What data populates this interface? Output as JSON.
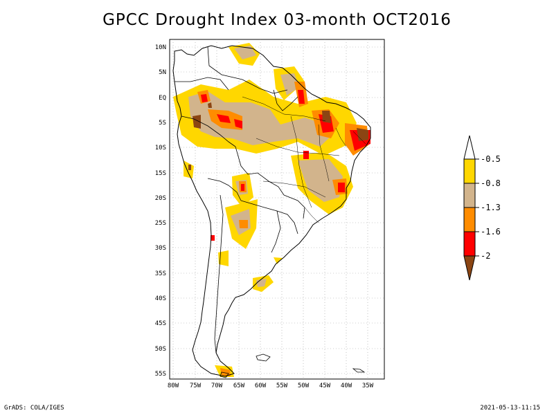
{
  "title": "GPCC Drought Index 03-month OCT2016",
  "footer": {
    "left": "GrADS: COLA/IGES",
    "right": "2021-05-13-11:15"
  },
  "colors": {
    "yellow": "#ffd700",
    "tan": "#d2b48c",
    "orange": "#ff8c00",
    "red": "#ff0000",
    "brown": "#8b4513",
    "grid": "#999999",
    "coast": "#000000"
  },
  "map": {
    "lat_labels": [
      "10N",
      "5N",
      "EQ",
      "5S",
      "10S",
      "15S",
      "20S",
      "25S",
      "30S",
      "35S",
      "40S",
      "45S",
      "50S",
      "55S"
    ],
    "lon_labels": [
      "80W",
      "75W",
      "70W",
      "65W",
      "60W",
      "55W",
      "50W",
      "45W",
      "40W",
      "35W"
    ]
  },
  "legend": {
    "labels": [
      "-0.5",
      "-0.8",
      "-1.3",
      "-1.6",
      "-2"
    ]
  }
}
